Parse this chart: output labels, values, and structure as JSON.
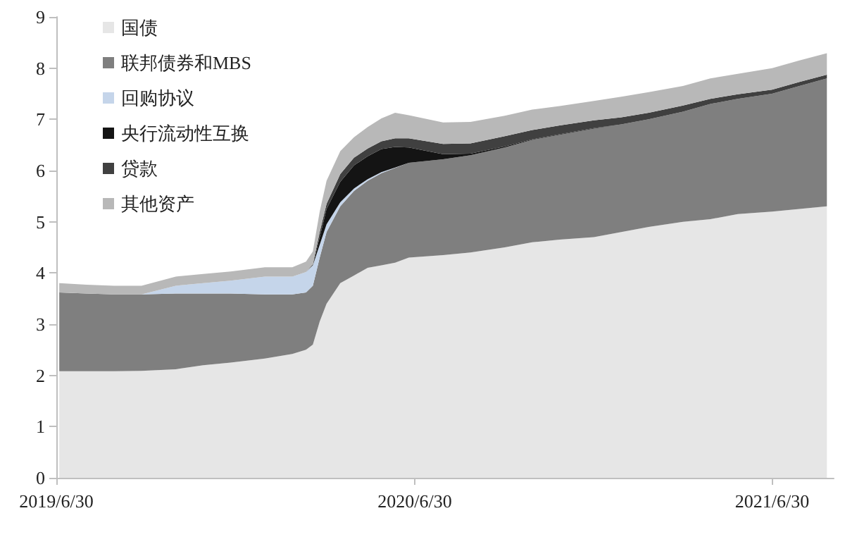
{
  "chart_data": {
    "type": "area",
    "stacked": true,
    "legend": "top left",
    "grid": false,
    "x": [
      "2019-07-03",
      "2019-07-31",
      "2019-08-28",
      "2019-09-25",
      "2019-10-30",
      "2019-11-27",
      "2019-12-25",
      "2020-01-29",
      "2020-02-26",
      "2020-03-11",
      "2020-03-18",
      "2020-03-25",
      "2020-04-01",
      "2020-04-15",
      "2020-04-29",
      "2020-05-13",
      "2020-05-27",
      "2020-06-10",
      "2020-06-24",
      "2020-07-29",
      "2020-08-26",
      "2020-09-30",
      "2020-10-28",
      "2020-11-25",
      "2020-12-30",
      "2021-01-27",
      "2021-02-24",
      "2021-03-31",
      "2021-04-28",
      "2021-05-26",
      "2021-06-30",
      "2021-07-28",
      "2021-08-25"
    ],
    "xlim": [
      "2019-06-30",
      "2021-09-01"
    ],
    "xticks": [
      {
        "value": "2019-06-30",
        "label": "2019/6/30"
      },
      {
        "value": "2020-06-30",
        "label": "2020/6/30"
      },
      {
        "value": "2021-06-30",
        "label": "2021/6/30"
      }
    ],
    "ylim": [
      0,
      9
    ],
    "yticks": [
      0,
      1,
      2,
      3,
      4,
      5,
      6,
      7,
      8,
      9
    ],
    "series": [
      {
        "name": "国债",
        "color": "#e6e6e6",
        "values": [
          2.08,
          2.08,
          2.08,
          2.09,
          2.12,
          2.2,
          2.25,
          2.33,
          2.42,
          2.5,
          2.6,
          3.05,
          3.4,
          3.8,
          3.95,
          4.1,
          4.15,
          4.2,
          4.3,
          4.35,
          4.4,
          4.5,
          4.6,
          4.65,
          4.7,
          4.8,
          4.9,
          5.0,
          5.05,
          5.15,
          5.2,
          5.25,
          5.3
        ]
      },
      {
        "name": "联邦债券和MBS",
        "color": "#7f7f7f",
        "values": [
          1.54,
          1.52,
          1.5,
          1.49,
          1.48,
          1.4,
          1.35,
          1.25,
          1.16,
          1.12,
          1.15,
          1.25,
          1.4,
          1.5,
          1.65,
          1.7,
          1.8,
          1.85,
          1.85,
          1.87,
          1.9,
          1.95,
          2.0,
          2.05,
          2.12,
          2.1,
          2.1,
          2.15,
          2.25,
          2.25,
          2.3,
          2.4,
          2.5
        ]
      },
      {
        "name": "回购协议",
        "color": "#c5d5ea",
        "values": [
          null,
          null,
          null,
          0,
          0.15,
          0.2,
          0.25,
          0.35,
          0.35,
          0.4,
          0.4,
          0.25,
          0.15,
          0.08,
          0.05,
          0.03,
          0.02,
          0.01,
          0,
          null,
          null,
          null,
          null,
          null,
          null,
          null,
          null,
          null,
          null,
          null,
          null,
          null,
          null
        ]
      },
      {
        "name": "央行流动性互换",
        "color": "#141414",
        "values": [
          null,
          null,
          null,
          null,
          null,
          null,
          null,
          null,
          null,
          null,
          0,
          0.15,
          0.3,
          0.4,
          0.45,
          0.45,
          0.45,
          0.4,
          0.3,
          0.1,
          0.03,
          0.02,
          0.01,
          0.01,
          0.01,
          0,
          null,
          null,
          null,
          null,
          null,
          null,
          null
        ]
      },
      {
        "name": "贷款",
        "color": "#404040",
        "values": [
          null,
          null,
          null,
          null,
          null,
          null,
          null,
          null,
          null,
          0,
          0.02,
          0.1,
          0.1,
          0.15,
          0.15,
          0.15,
          0.15,
          0.17,
          0.18,
          0.2,
          0.2,
          0.2,
          0.18,
          0.17,
          0.15,
          0.14,
          0.13,
          0.12,
          0.1,
          0.09,
          0.08,
          0.08,
          0.07
        ]
      },
      {
        "name": "其他资产",
        "color": "#b8b8b8",
        "values": [
          0.18,
          0.17,
          0.17,
          0.17,
          0.18,
          0.18,
          0.18,
          0.18,
          0.18,
          0.2,
          0.25,
          0.4,
          0.45,
          0.45,
          0.4,
          0.42,
          0.45,
          0.5,
          0.45,
          0.42,
          0.42,
          0.4,
          0.4,
          0.38,
          0.38,
          0.4,
          0.4,
          0.38,
          0.4,
          0.4,
          0.42,
          0.42,
          0.42
        ]
      }
    ]
  }
}
